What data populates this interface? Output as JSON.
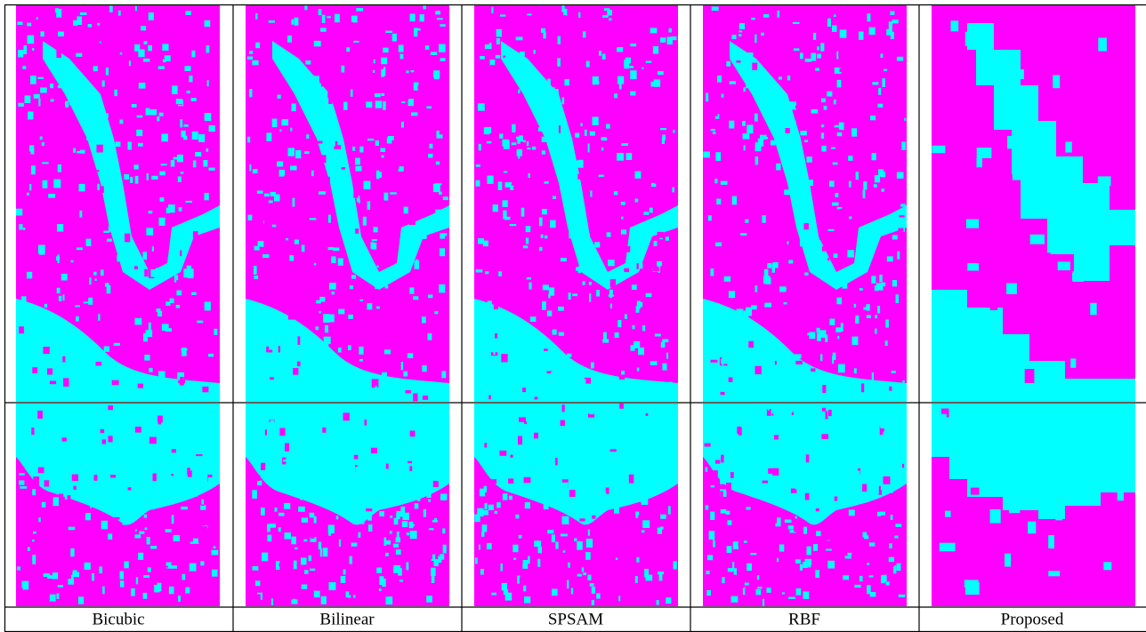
{
  "captions": [
    "Bicubic",
    "Bilinear",
    "SPSAM",
    "RBF",
    "Proposed"
  ]
}
